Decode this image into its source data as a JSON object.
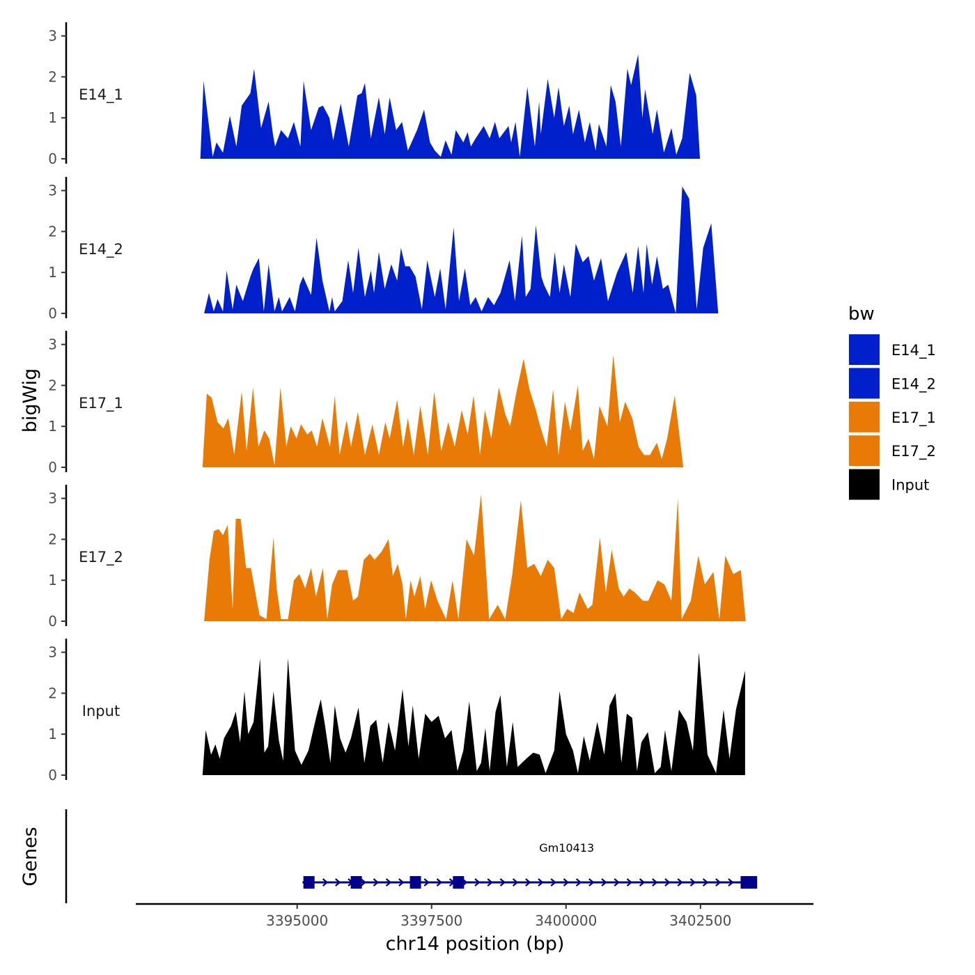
{
  "chart_data": {
    "type": "area",
    "layout": "stacked genome tracks",
    "ylabel": "bigWig",
    "xlabel": "chr14 position (bp)",
    "genes_label": "Genes",
    "xlim": [
      3392000,
      3404600
    ],
    "x_ticks": [
      3395000,
      3397500,
      3400000,
      3402500
    ],
    "x_tick_labels": [
      "3395000",
      "3397500",
      "3400000",
      "3402500"
    ],
    "ylim": [
      0,
      3.3
    ],
    "y_ticks": [
      0,
      1,
      2,
      3
    ],
    "y_tick_labels": [
      "0",
      "1",
      "2",
      "3"
    ],
    "legend": {
      "title": "bw",
      "entries": [
        {
          "label": "E14_1",
          "color": "#0020CC"
        },
        {
          "label": "E14_2",
          "color": "#0020CC"
        },
        {
          "label": "E17_1",
          "color": "#E87A05"
        },
        {
          "label": "E17_2",
          "color": "#E87A05"
        },
        {
          "label": "Input",
          "color": "#000000"
        }
      ]
    },
    "series": [
      {
        "name": "E14_1",
        "color": "#0020CC",
        "x": [
          3393200,
          3393260,
          3393430,
          3393500,
          3393620,
          3393750,
          3393870,
          3393970,
          3394130,
          3394200,
          3394330,
          3394470,
          3394550,
          3394590,
          3394700,
          3394830,
          3394940,
          3395060,
          3395120,
          3395260,
          3395400,
          3395480,
          3395600,
          3395670,
          3395810,
          3395960,
          3396120,
          3396200,
          3396260,
          3396370,
          3396520,
          3396630,
          3396720,
          3396840,
          3396950,
          3397060,
          3397230,
          3397360,
          3397470,
          3397560,
          3397670,
          3397760,
          3397870,
          3397950,
          3398090,
          3398170,
          3398230,
          3398320,
          3398470,
          3398580,
          3398680,
          3398760,
          3398930,
          3398980,
          3399060,
          3399140,
          3399280,
          3399420,
          3399500,
          3399530,
          3399660,
          3399780,
          3399860,
          3399960,
          3400060,
          3400130,
          3400240,
          3400350,
          3400440,
          3400550,
          3400610,
          3400750,
          3400830,
          3400920,
          3401020,
          3401140,
          3401210,
          3401340,
          3401420,
          3401470,
          3401610,
          3401690,
          3401820,
          3401960,
          3402050,
          3402160,
          3402300,
          3402420,
          3402490,
          3402630,
          3402720,
          3402800,
          3402870,
          3402950,
          3403080,
          3403180,
          3403360
        ],
        "y": [
          0,
          1.9,
          0.05,
          0.4,
          0.15,
          1.05,
          0.3,
          1.3,
          1.6,
          2.2,
          0.75,
          1.4,
          0.6,
          0.3,
          0.7,
          0.5,
          0.9,
          0.3,
          1.9,
          0.7,
          1.25,
          1.3,
          1.0,
          0.45,
          1.35,
          0.3,
          1.55,
          1.6,
          1.85,
          0.5,
          1.5,
          0.6,
          1.5,
          0.7,
          0.9,
          0.2,
          0.7,
          1.2,
          0.4,
          0.2,
          0.05,
          0.45,
          0.1,
          0.7,
          0.4,
          0.65,
          0.3,
          0.5,
          0.8,
          0.5,
          0.9,
          0.5,
          0.8,
          0.4,
          0.9,
          0.05,
          1.75,
          0.3,
          1.4,
          0.6,
          1.95,
          1.0,
          1.75,
          0.8,
          1.3,
          0.6,
          1.2,
          0.4,
          0.9,
          0.2,
          0.85,
          0.3,
          1.8,
          1.4,
          0.3,
          2.2,
          1.8,
          2.55,
          1.0,
          1.7,
          0.6,
          1.2,
          0.15,
          0.75,
          0.1,
          0.5,
          2.1,
          1.55,
          0,
          0,
          0,
          0,
          0,
          0,
          0,
          0,
          0
        ]
      },
      {
        "name": "E14_2",
        "color": "#0020CC",
        "x": [
          3393270,
          3393360,
          3393450,
          3393520,
          3393620,
          3393690,
          3393800,
          3393870,
          3393990,
          3394130,
          3394190,
          3394290,
          3394380,
          3394470,
          3394580,
          3394660,
          3394720,
          3394860,
          3394960,
          3395050,
          3395110,
          3395260,
          3395360,
          3395470,
          3395600,
          3395650,
          3395700,
          3395840,
          3395950,
          3396040,
          3396140,
          3396260,
          3396370,
          3396430,
          3396520,
          3396630,
          3396750,
          3396860,
          3396930,
          3397010,
          3397090,
          3397200,
          3397320,
          3397420,
          3397560,
          3397660,
          3397760,
          3397910,
          3398010,
          3398120,
          3398220,
          3398320,
          3398430,
          3398550,
          3398660,
          3398780,
          3398950,
          3399050,
          3399180,
          3399250,
          3399340,
          3399440,
          3399540,
          3399590,
          3399700,
          3399790,
          3399880,
          3399960,
          3400080,
          3400180,
          3400310,
          3400420,
          3400520,
          3400650,
          3400780,
          3400950,
          3401120,
          3401240,
          3401340,
          3401440,
          3401500,
          3401600,
          3401690,
          3401800,
          3401900,
          3402040,
          3402160,
          3402290,
          3402430,
          3402550,
          3402700,
          3402830,
          3402900,
          3402970,
          3403060,
          3403200,
          3403330
        ],
        "y": [
          0,
          0.5,
          0.05,
          0.35,
          0.05,
          1.05,
          0.1,
          0.7,
          0.3,
          0.9,
          1.1,
          1.35,
          0.05,
          1.2,
          0.05,
          0.4,
          0.05,
          0.4,
          0.05,
          0.7,
          0.9,
          0.45,
          1.85,
          0.8,
          0.05,
          0.4,
          0.05,
          0.3,
          1.3,
          0.5,
          1.6,
          0.4,
          1.05,
          0.5,
          1.5,
          0.6,
          1.2,
          0.8,
          1.6,
          1.15,
          1.15,
          0.9,
          0.1,
          1.3,
          0.4,
          1.1,
          0.1,
          2.1,
          0.3,
          1.1,
          0.2,
          0.4,
          0.05,
          0.4,
          0.2,
          0.5,
          1.3,
          0.3,
          1.9,
          0.4,
          0.6,
          2.15,
          0.9,
          0.7,
          0.4,
          1.5,
          0.5,
          1.2,
          0.4,
          1.7,
          1.25,
          1.4,
          0.8,
          1.35,
          0.3,
          1.0,
          1.5,
          0.5,
          1.65,
          0.5,
          1.7,
          0.7,
          1.4,
          0.6,
          0.7,
          0,
          3.1,
          2.8,
          0.1,
          1.6,
          2.2,
          0,
          0,
          0,
          0,
          0,
          0
        ]
      },
      {
        "name": "E17_1",
        "color": "#E87A05",
        "x": [
          3393240,
          3393320,
          3393410,
          3393520,
          3393630,
          3393720,
          3393830,
          3393970,
          3394060,
          3394180,
          3394280,
          3394390,
          3394480,
          3394580,
          3394690,
          3394800,
          3394880,
          3394990,
          3395070,
          3395190,
          3395270,
          3395370,
          3395470,
          3395610,
          3395700,
          3395790,
          3395920,
          3396000,
          3396130,
          3396260,
          3396400,
          3396520,
          3396640,
          3396720,
          3396860,
          3396970,
          3397060,
          3397170,
          3397290,
          3397430,
          3397550,
          3397680,
          3397810,
          3397930,
          3398060,
          3398170,
          3398280,
          3398400,
          3398490,
          3398610,
          3398750,
          3398870,
          3398960,
          3399080,
          3399210,
          3399320,
          3399440,
          3399520,
          3399640,
          3399760,
          3399860,
          3399980,
          3400080,
          3400220,
          3400310,
          3400420,
          3400520,
          3400620,
          3400770,
          3400880,
          3401000,
          3401100,
          3401230,
          3401350,
          3401450,
          3401560,
          3401690,
          3401780,
          3401880,
          3402020,
          3402180,
          3402300,
          3402420,
          3402560,
          3402720,
          3402840,
          3402960,
          3403080,
          3403230,
          3403360
        ],
        "y": [
          0,
          1.8,
          1.7,
          1.1,
          0.95,
          1.2,
          0.3,
          1.85,
          0.4,
          1.95,
          0.5,
          0.9,
          0.7,
          0.05,
          1.95,
          0.5,
          1.0,
          0.7,
          1.05,
          0.8,
          0.9,
          0.5,
          1.2,
          0.5,
          1.75,
          0.3,
          1.15,
          0.5,
          1.35,
          0.3,
          1.05,
          0.3,
          1.1,
          0.7,
          1.65,
          0.5,
          1.2,
          0.3,
          1.5,
          0.3,
          1.85,
          0.4,
          1.1,
          0.5,
          1.4,
          0.8,
          1.75,
          0.3,
          1.4,
          0.7,
          1.95,
          1.3,
          1.0,
          1.85,
          2.65,
          1.9,
          1.4,
          1.0,
          0.5,
          1.9,
          0.3,
          1.6,
          0.9,
          2.0,
          0.4,
          0.7,
          0.2,
          1.5,
          1.0,
          2.75,
          1.1,
          1.6,
          1.2,
          0.5,
          0.3,
          0.3,
          0.6,
          0.2,
          0.7,
          1.75,
          0,
          0,
          0,
          0,
          0,
          0,
          0,
          0,
          0,
          0
        ]
      },
      {
        "name": "E17_2",
        "color": "#E87A05",
        "x": [
          3393270,
          3393370,
          3393450,
          3393540,
          3393620,
          3393710,
          3393800,
          3393860,
          3393950,
          3394050,
          3394140,
          3394300,
          3394430,
          3394560,
          3394620,
          3394700,
          3394830,
          3394940,
          3395040,
          3395150,
          3395260,
          3395350,
          3395480,
          3395560,
          3395650,
          3395760,
          3395930,
          3396040,
          3396130,
          3396240,
          3396350,
          3396440,
          3396570,
          3396700,
          3396780,
          3396870,
          3396960,
          3397020,
          3397110,
          3397180,
          3397290,
          3397380,
          3397490,
          3397610,
          3397770,
          3397890,
          3398000,
          3398150,
          3398290,
          3398420,
          3398570,
          3398730,
          3398870,
          3399000,
          3399160,
          3399280,
          3399410,
          3399530,
          3399660,
          3399780,
          3399910,
          3400020,
          3400140,
          3400250,
          3400400,
          3400490,
          3400630,
          3400740,
          3400850,
          3400980,
          3401070,
          3401180,
          3401280,
          3401430,
          3401530,
          3401700,
          3401830,
          3401960,
          3402080,
          3402150,
          3402320,
          3402460,
          3402580,
          3402740,
          3402850,
          3402960,
          3403110,
          3403250,
          3403340
        ],
        "y": [
          0,
          1.5,
          2.2,
          2.25,
          2.1,
          2.35,
          0.3,
          2.5,
          2.5,
          1.3,
          1.3,
          0.15,
          0.05,
          2.05,
          0.8,
          0.05,
          0.05,
          1.0,
          1.15,
          0.8,
          1.3,
          0.6,
          1.3,
          0.05,
          0.9,
          1.25,
          1.25,
          0.5,
          0.6,
          1.5,
          1.65,
          1.5,
          1.7,
          2.0,
          1.1,
          1.4,
          0.9,
          0.05,
          1.0,
          0.6,
          1.1,
          0.3,
          1.0,
          0.5,
          0.05,
          1.0,
          0.05,
          2.0,
          1.6,
          3.1,
          0.05,
          0.4,
          0.05,
          1.15,
          2.95,
          1.3,
          1.4,
          1.1,
          1.5,
          1.3,
          0.05,
          0.3,
          0.2,
          0.7,
          0.3,
          0.4,
          2.05,
          0.7,
          1.75,
          0.8,
          0.6,
          0.8,
          0.7,
          0.5,
          0.5,
          1.0,
          0.9,
          0.5,
          3.0,
          0.05,
          0.5,
          1.6,
          0.9,
          1.2,
          0.05,
          1.6,
          1.15,
          1.25,
          0
        ]
      },
      {
        "name": "Input",
        "color": "#000000",
        "x": [
          3393240,
          3393300,
          3393400,
          3393480,
          3393560,
          3393640,
          3393770,
          3393860,
          3393940,
          3394020,
          3394090,
          3394190,
          3394310,
          3394390,
          3394460,
          3394560,
          3394660,
          3394740,
          3394830,
          3394960,
          3395080,
          3395210,
          3395360,
          3395440,
          3395520,
          3395620,
          3395700,
          3395800,
          3395900,
          3396000,
          3396140,
          3396250,
          3396360,
          3396470,
          3396590,
          3396700,
          3396820,
          3396960,
          3397070,
          3397150,
          3397260,
          3397380,
          3397500,
          3397630,
          3397750,
          3397870,
          3397980,
          3398090,
          3398200,
          3398340,
          3398420,
          3398500,
          3398580,
          3398690,
          3398780,
          3398900,
          3399010,
          3399100,
          3399260,
          3399390,
          3399510,
          3399620,
          3399780,
          3399880,
          3400000,
          3400130,
          3400220,
          3400330,
          3400440,
          3400580,
          3400710,
          3400810,
          3400920,
          3401030,
          3401130,
          3401230,
          3401320,
          3401400,
          3401520,
          3401650,
          3401760,
          3401840,
          3401960,
          3402100,
          3402240,
          3402360,
          3402470,
          3402630,
          3402790,
          3402930,
          3403040,
          3403160,
          3403330
        ],
        "y": [
          0,
          1.1,
          0.5,
          0.75,
          0.4,
          0.9,
          1.2,
          1.55,
          0.8,
          2.05,
          1.0,
          1.3,
          2.85,
          0.55,
          0.7,
          2.05,
          0.85,
          0.35,
          2.85,
          0.6,
          0.25,
          0.6,
          1.45,
          1.85,
          1.2,
          0.3,
          1.7,
          0.9,
          0.55,
          0.9,
          1.65,
          0.3,
          1.2,
          1.35,
          0.3,
          1.3,
          0.6,
          2.1,
          0.7,
          1.7,
          0.4,
          1.5,
          1.3,
          1.45,
          0.9,
          1.1,
          0.1,
          0.6,
          1.8,
          0.1,
          0.3,
          1.15,
          0.1,
          1.55,
          1.95,
          0.2,
          1.3,
          0.2,
          0.4,
          0.55,
          0.5,
          0.05,
          0.6,
          2.05,
          1.0,
          0.6,
          0.05,
          0.95,
          0.35,
          1.3,
          0.5,
          1.7,
          2.0,
          0.3,
          1.5,
          1.4,
          0.1,
          0.8,
          1.05,
          0.05,
          0.2,
          1.1,
          0.1,
          1.6,
          1.3,
          0.6,
          3.0,
          0.5,
          0.05,
          1.6,
          0.4,
          1.6,
          2.55
        ]
      }
    ],
    "genes": [
      {
        "name": "Gm10413",
        "start": 3395100,
        "end": 3403500,
        "strand": "+",
        "exons": [
          3395220,
          3396100,
          3397200,
          3398000,
          3403350,
          3403450
        ],
        "color": "#00008B"
      }
    ]
  }
}
